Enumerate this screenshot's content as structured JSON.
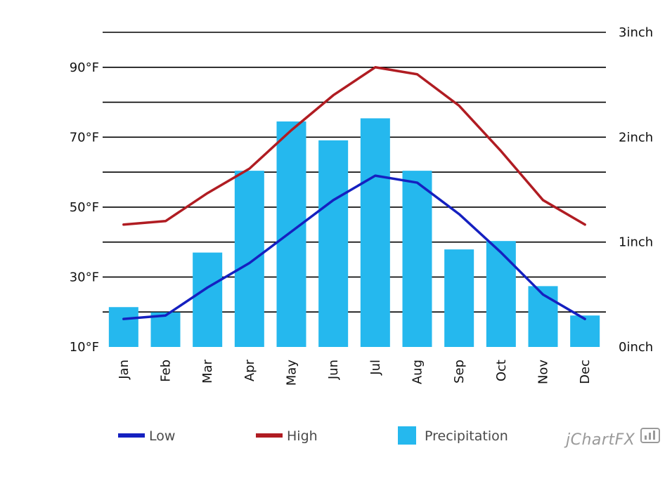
{
  "chart_data": {
    "type": "bar",
    "categories": [
      "Jan",
      "Feb",
      "Mar",
      "Apr",
      "May",
      "Jun",
      "Jul",
      "Aug",
      "Sep",
      "Oct",
      "Nov",
      "Dec"
    ],
    "series": [
      {
        "name": "Low",
        "type": "line",
        "axis": "left",
        "color": "#1520c0",
        "values": [
          18,
          19,
          27,
          34,
          43,
          52,
          59,
          57,
          48,
          37,
          25,
          18
        ]
      },
      {
        "name": "High",
        "type": "line",
        "axis": "left",
        "color": "#b01c22",
        "values": [
          45,
          46,
          54,
          61,
          72,
          82,
          90,
          88,
          79,
          66,
          52,
          45
        ]
      },
      {
        "name": "Precipitation",
        "type": "bar",
        "axis": "right",
        "color": "#25b8ee",
        "values": [
          0.38,
          0.33,
          0.9,
          1.68,
          2.15,
          1.97,
          2.18,
          1.68,
          0.93,
          1.01,
          0.58,
          0.3
        ]
      }
    ],
    "y_left": {
      "min": 10,
      "max": 100,
      "ticks": [
        "10°F",
        "30°F",
        "50°F",
        "70°F",
        "90°F"
      ],
      "tick_values": [
        10,
        30,
        50,
        70,
        90
      ]
    },
    "y_right": {
      "min": 0,
      "max": 3,
      "ticks": [
        "0inch",
        "1inch",
        "2inch",
        "3inch"
      ],
      "tick_values": [
        0,
        1,
        2,
        3
      ]
    },
    "grid": true,
    "legend_position": "bottom"
  },
  "legend": {
    "items": [
      {
        "label": "Low",
        "color": "#1520c0",
        "shape": "line"
      },
      {
        "label": "High",
        "color": "#b01c22",
        "shape": "line"
      },
      {
        "label": "Precipitation",
        "color": "#25b8ee",
        "shape": "box"
      }
    ]
  },
  "brand": {
    "text": "jChartFX"
  }
}
